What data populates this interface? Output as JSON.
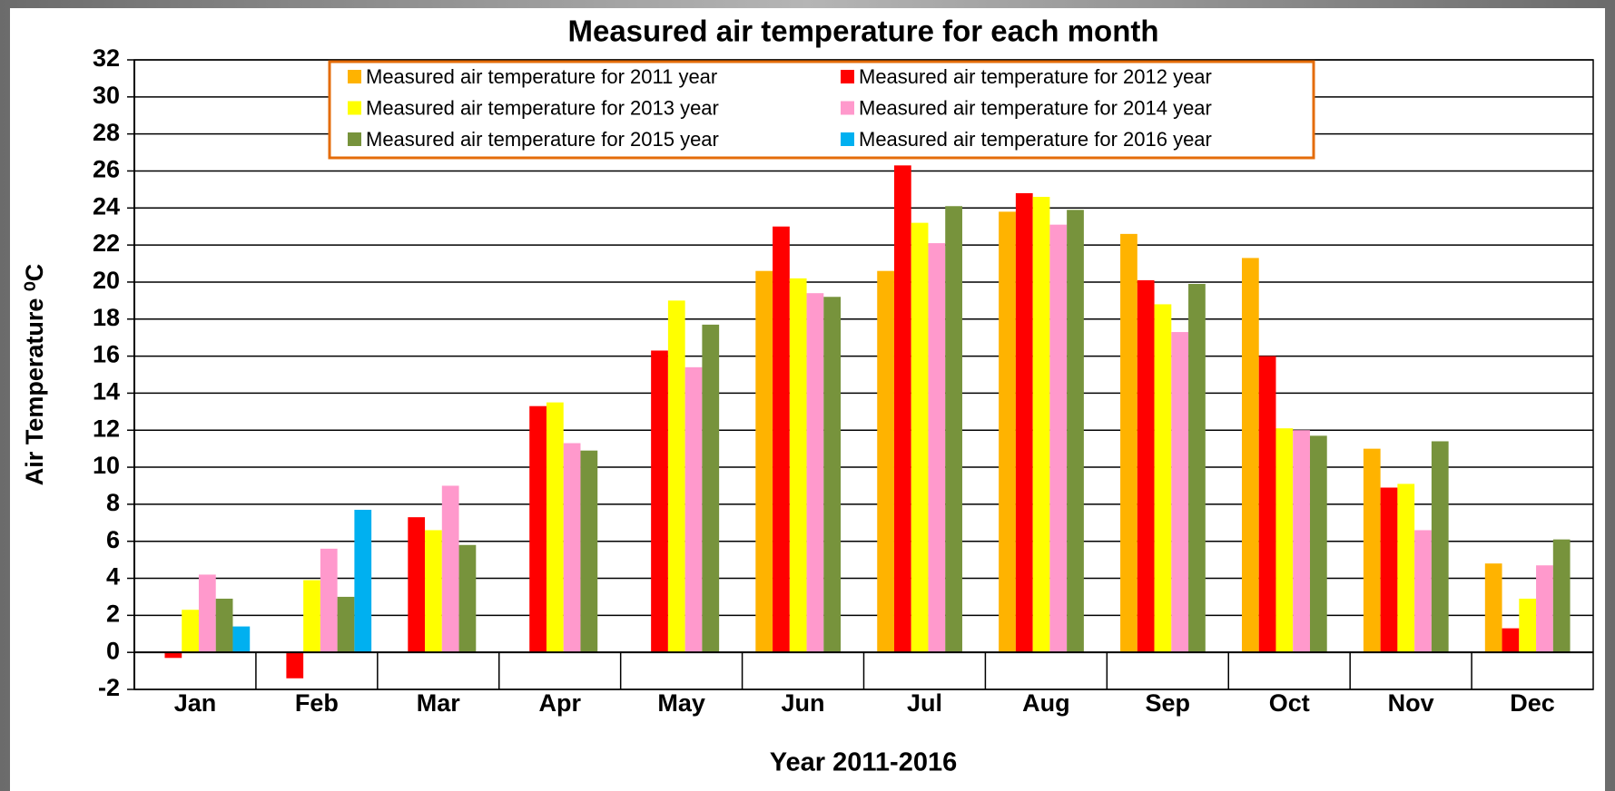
{
  "chart_data": {
    "type": "bar",
    "title": "Measured air temperature for each month",
    "y_label": "Air Temperature ⁰C",
    "x_label": "Year 2011-2016",
    "categories": [
      "Jan",
      "Feb",
      "Mar",
      "Apr",
      "May",
      "Jun",
      "Jul",
      "Aug",
      "Sep",
      "Oct",
      "Nov",
      "Dec"
    ],
    "series": [
      {
        "name": "Measured air temperature for 2011  year",
        "color": "#ffb300",
        "values": [
          null,
          null,
          null,
          null,
          null,
          20.6,
          20.6,
          23.8,
          22.6,
          21.3,
          11.0,
          4.8
        ]
      },
      {
        "name": "Measured air temperature for 2012  year",
        "color": "#ff0000",
        "values": [
          -0.3,
          -1.4,
          7.3,
          13.3,
          16.3,
          23.0,
          26.3,
          24.8,
          20.1,
          16.0,
          8.9,
          1.3
        ]
      },
      {
        "name": "Measured air temperature for 2013  year",
        "color": "#ffff00",
        "values": [
          2.3,
          3.9,
          6.6,
          13.5,
          19.0,
          20.2,
          23.2,
          24.6,
          18.8,
          12.1,
          9.1,
          2.9
        ]
      },
      {
        "name": "Measured air temperature for 2014  year",
        "color": "#ff99cc",
        "values": [
          4.2,
          5.6,
          9.0,
          11.3,
          15.4,
          19.4,
          22.1,
          23.1,
          17.3,
          12.0,
          6.6,
          4.7
        ]
      },
      {
        "name": "Measured air temperature for 2015  year",
        "color": "#77933c",
        "values": [
          2.9,
          3.0,
          5.8,
          10.9,
          17.7,
          19.2,
          24.1,
          23.9,
          19.9,
          11.7,
          11.4,
          6.1
        ]
      },
      {
        "name": "Measured air temperature for 2016  year",
        "color": "#00b0f0",
        "values": [
          1.4,
          7.7,
          null,
          null,
          null,
          null,
          null,
          null,
          null,
          null,
          null,
          null
        ]
      }
    ],
    "ylim": [
      -2,
      32
    ],
    "yticks": [
      -2,
      0,
      2,
      4,
      6,
      8,
      10,
      12,
      14,
      16,
      18,
      20,
      22,
      24,
      26,
      28,
      30,
      32
    ],
    "grid": true,
    "legend": "top"
  }
}
